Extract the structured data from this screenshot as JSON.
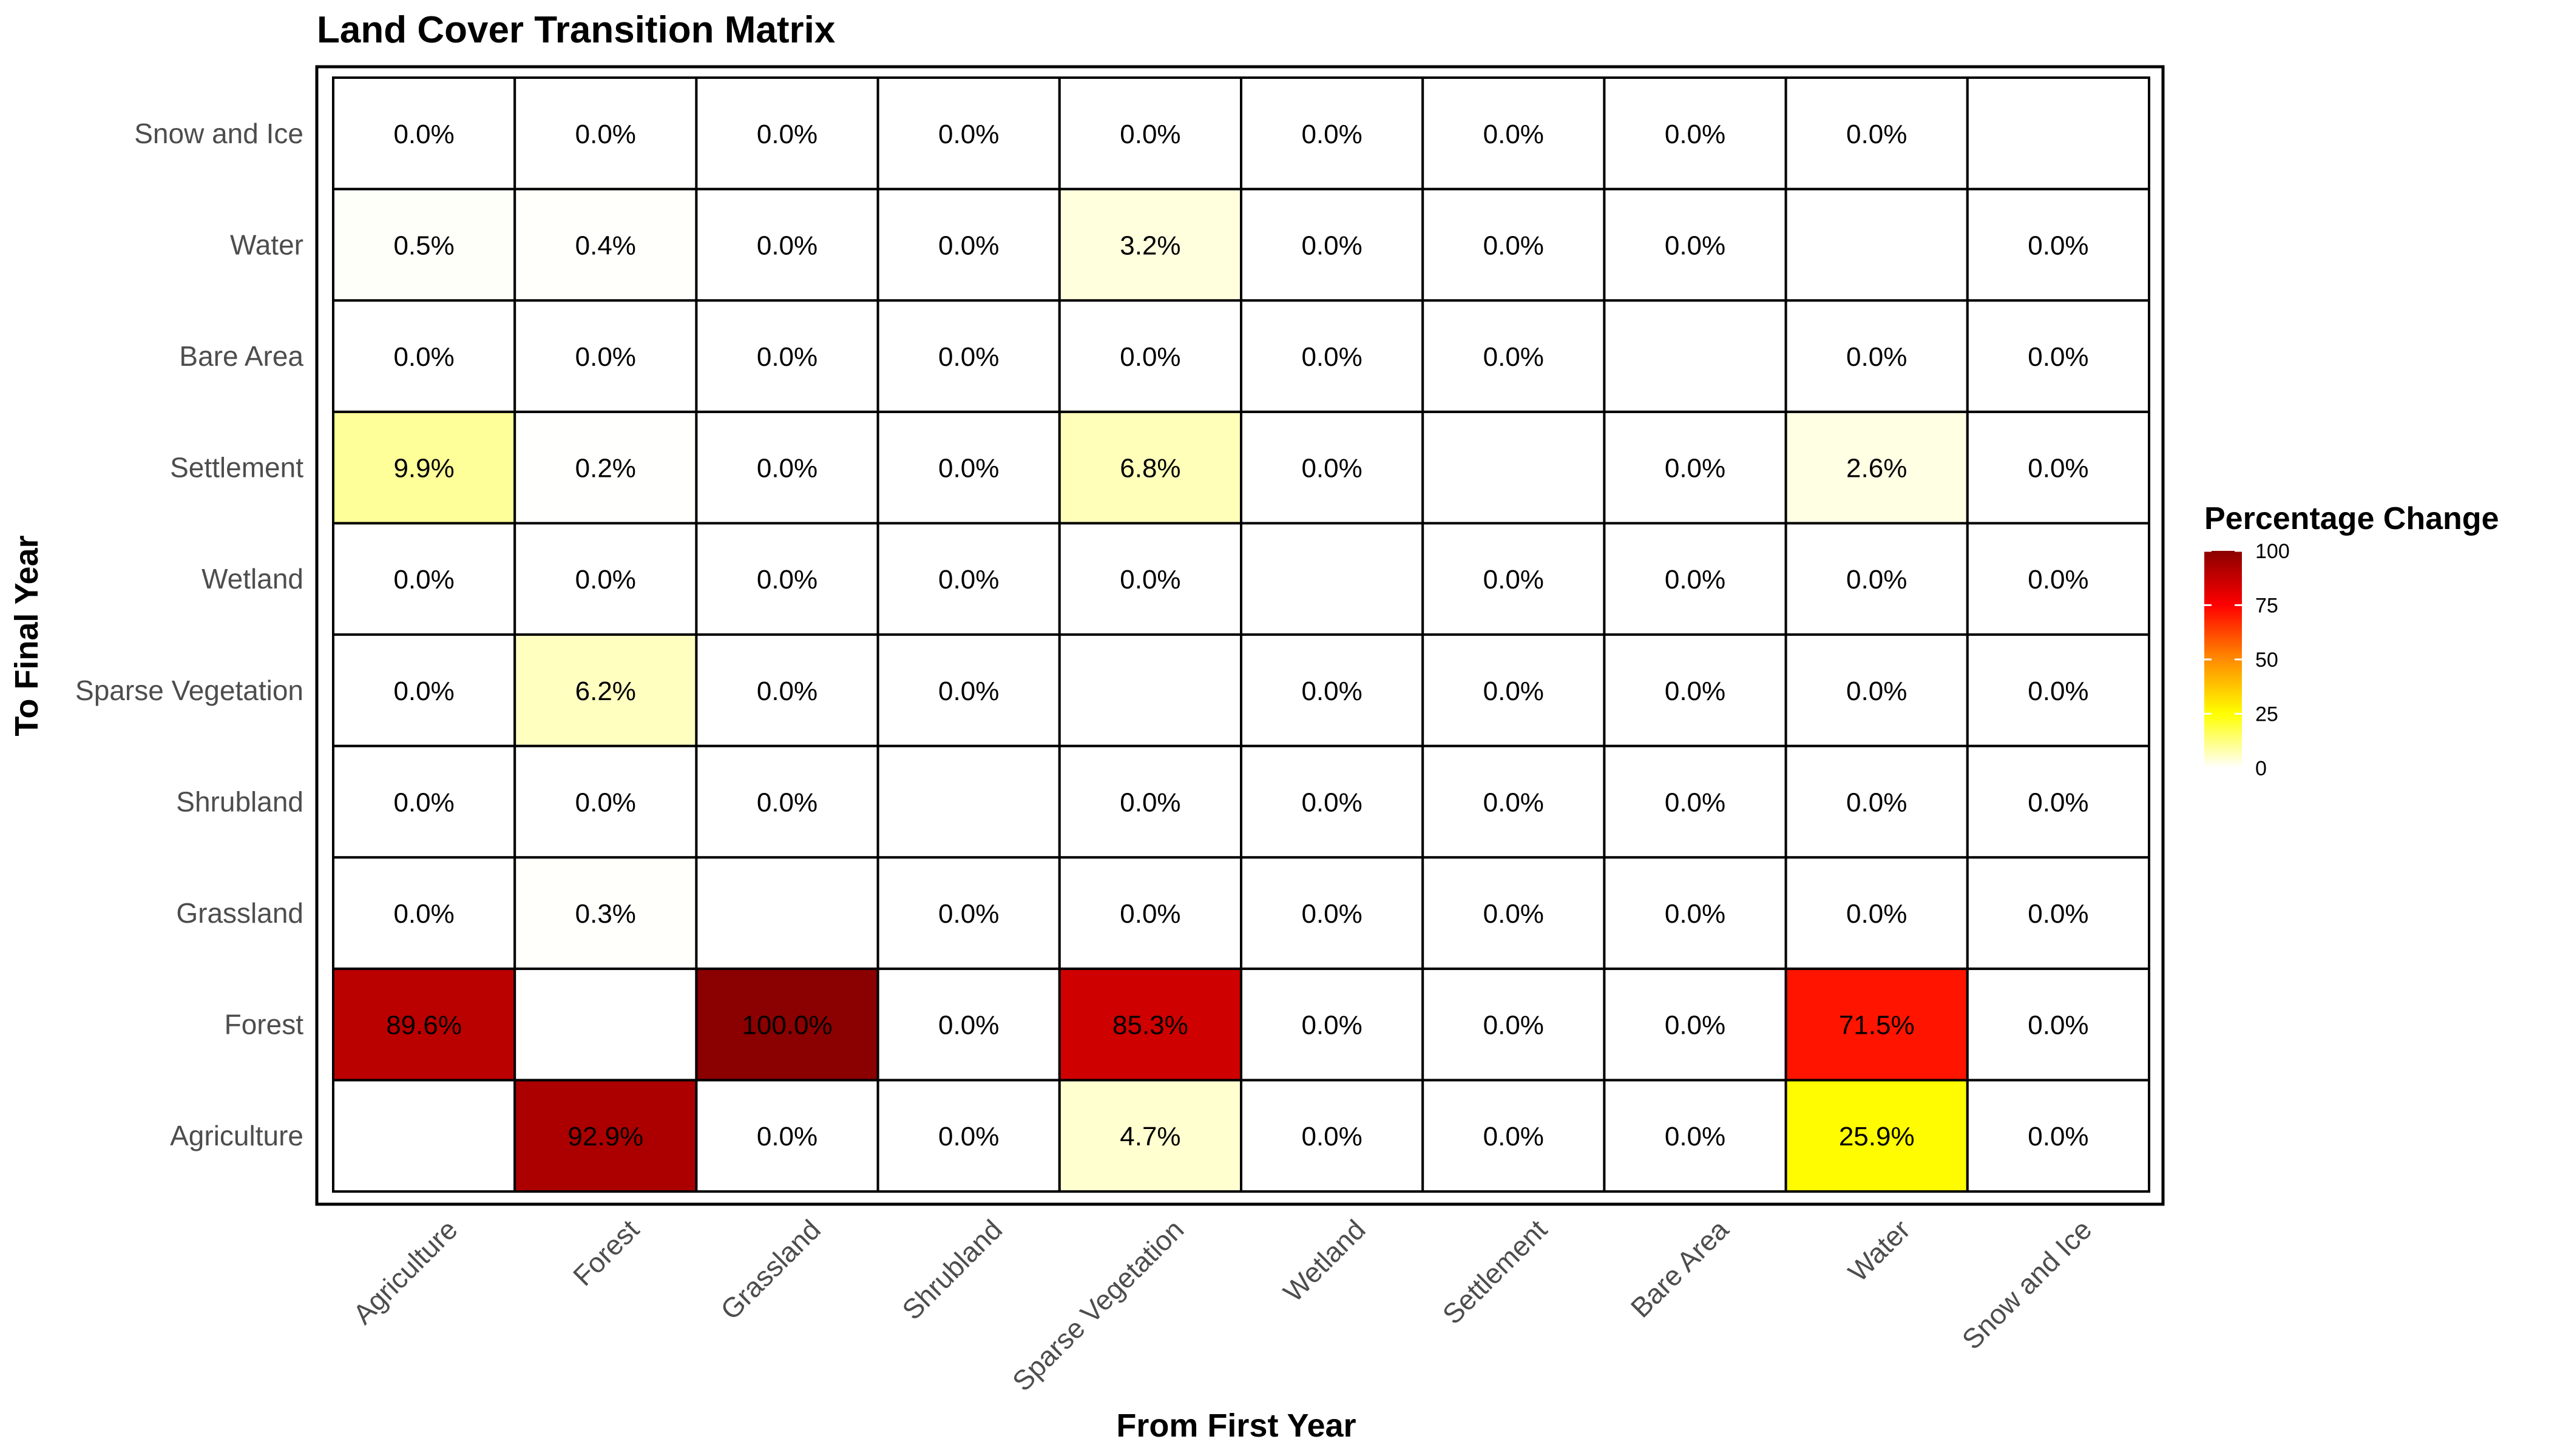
{
  "chart_data": {
    "type": "heatmap",
    "title": "Land Cover Transition Matrix",
    "xlabel": "From First Year",
    "ylabel": "To Final Year",
    "x_categories": [
      "Agriculture",
      "Forest",
      "Grassland",
      "Shrubland",
      "Sparse Vegetation",
      "Wetland",
      "Settlement",
      "Bare Area",
      "Water",
      "Snow and Ice"
    ],
    "y_categories": [
      "Agriculture",
      "Forest",
      "Grassland",
      "Shrubland",
      "Sparse Vegetation",
      "Wetland",
      "Settlement",
      "Bare Area",
      "Water",
      "Snow and Ice"
    ],
    "values": [
      [
        null,
        92.9,
        0.0,
        0.0,
        4.7,
        0.0,
        0.0,
        0.0,
        25.9,
        0.0
      ],
      [
        89.6,
        null,
        100.0,
        0.0,
        85.3,
        0.0,
        0.0,
        0.0,
        71.5,
        0.0
      ],
      [
        0.0,
        0.3,
        null,
        0.0,
        0.0,
        0.0,
        0.0,
        0.0,
        0.0,
        0.0
      ],
      [
        0.0,
        0.0,
        0.0,
        null,
        0.0,
        0.0,
        0.0,
        0.0,
        0.0,
        0.0
      ],
      [
        0.0,
        6.2,
        0.0,
        0.0,
        null,
        0.0,
        0.0,
        0.0,
        0.0,
        0.0
      ],
      [
        0.0,
        0.0,
        0.0,
        0.0,
        0.0,
        null,
        0.0,
        0.0,
        0.0,
        0.0
      ],
      [
        9.9,
        0.2,
        0.0,
        0.0,
        6.8,
        0.0,
        null,
        0.0,
        2.6,
        0.0
      ],
      [
        0.0,
        0.0,
        0.0,
        0.0,
        0.0,
        0.0,
        0.0,
        null,
        0.0,
        0.0
      ],
      [
        0.5,
        0.4,
        0.0,
        0.0,
        3.2,
        0.0,
        0.0,
        0.0,
        null,
        0.0
      ],
      [
        0.0,
        0.0,
        0.0,
        0.0,
        0.0,
        0.0,
        0.0,
        0.0,
        0.0,
        null
      ]
    ],
    "value_suffix": "%",
    "legend": {
      "title": "Percentage Change",
      "position": "right",
      "range": [
        0,
        100
      ],
      "ticks": [
        0,
        25,
        50,
        75,
        100
      ],
      "colors": [
        "#ffffff",
        "#ffff00",
        "#ff8c00",
        "#ff0000",
        "#8b0000"
      ]
    },
    "colors": {
      "cell_border": "#000000",
      "panel_border": "#000000",
      "label_text": "#4d4d4d"
    }
  }
}
